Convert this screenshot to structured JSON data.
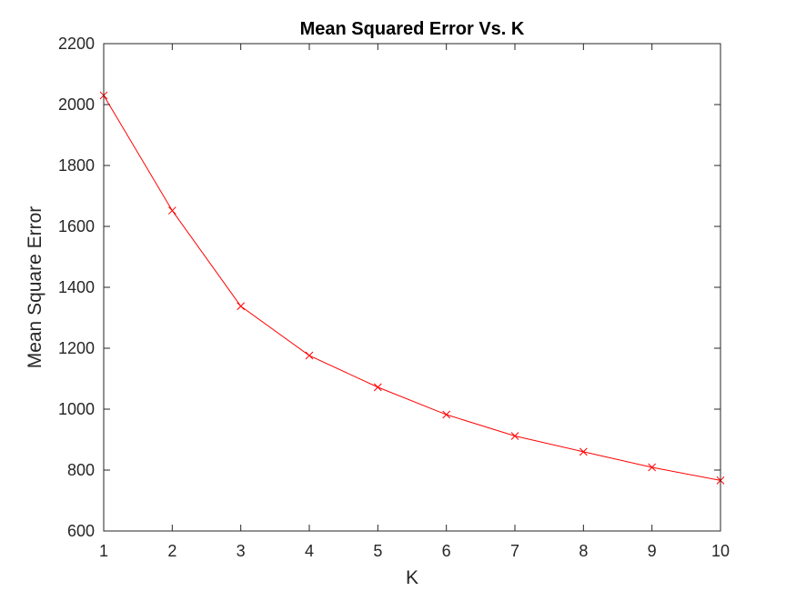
{
  "chart_data": {
    "type": "line",
    "title": "Mean Squared Error Vs. K",
    "xlabel": "K",
    "ylabel": "Mean Square Error",
    "xlim": [
      1,
      10
    ],
    "ylim": [
      600,
      2200
    ],
    "xticks": [
      1,
      2,
      3,
      4,
      5,
      6,
      7,
      8,
      9,
      10
    ],
    "yticks": [
      600,
      800,
      1000,
      1200,
      1400,
      1600,
      1800,
      2000,
      2200
    ],
    "grid": false,
    "series": [
      {
        "x": [
          1,
          2,
          3,
          4,
          5,
          6,
          7,
          8,
          9,
          10
        ],
        "y": [
          2030,
          1652,
          1338,
          1176,
          1072,
          982,
          912,
          860,
          809,
          766
        ],
        "color": "#ff0000",
        "marker": "x"
      }
    ]
  }
}
